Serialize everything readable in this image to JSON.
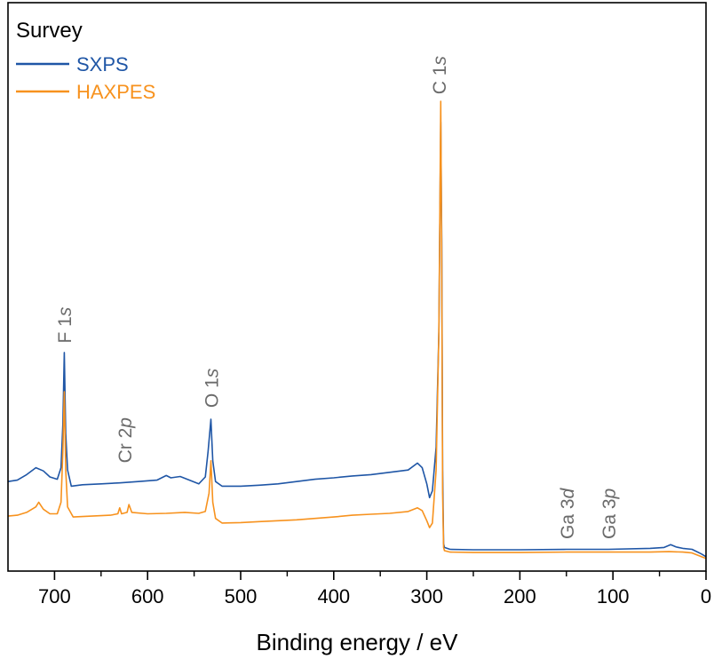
{
  "chart_data": {
    "type": "line",
    "title": "Survey",
    "xlabel": "Binding energy / eV",
    "ylabel": "",
    "xlim": [
      750,
      0
    ],
    "x_reversed": true,
    "y_axis_ticks": false,
    "grid": false,
    "legend_position": "top-left",
    "x_ticks": [
      700,
      600,
      500,
      400,
      300,
      200,
      100,
      0
    ],
    "series": [
      {
        "name": "SXPS",
        "color": "#1f56a6",
        "points": [
          [
            750,
            0.175
          ],
          [
            740,
            0.178
          ],
          [
            730,
            0.19
          ],
          [
            720,
            0.205
          ],
          [
            712,
            0.198
          ],
          [
            705,
            0.185
          ],
          [
            697,
            0.18
          ],
          [
            693,
            0.205
          ],
          [
            691,
            0.3
          ],
          [
            689.5,
            0.455
          ],
          [
            688,
            0.28
          ],
          [
            686,
            0.2
          ],
          [
            682,
            0.165
          ],
          [
            670,
            0.168
          ],
          [
            650,
            0.17
          ],
          [
            630,
            0.172
          ],
          [
            610,
            0.175
          ],
          [
            590,
            0.178
          ],
          [
            580,
            0.188
          ],
          [
            575,
            0.183
          ],
          [
            565,
            0.186
          ],
          [
            555,
            0.178
          ],
          [
            545,
            0.17
          ],
          [
            538,
            0.185
          ],
          [
            535,
            0.24
          ],
          [
            532,
            0.31
          ],
          [
            530,
            0.22
          ],
          [
            527,
            0.175
          ],
          [
            520,
            0.165
          ],
          [
            500,
            0.165
          ],
          [
            480,
            0.167
          ],
          [
            460,
            0.17
          ],
          [
            440,
            0.175
          ],
          [
            420,
            0.18
          ],
          [
            400,
            0.183
          ],
          [
            380,
            0.187
          ],
          [
            360,
            0.19
          ],
          [
            340,
            0.195
          ],
          [
            320,
            0.2
          ],
          [
            310,
            0.215
          ],
          [
            305,
            0.205
          ],
          [
            300,
            0.17
          ],
          [
            297,
            0.14
          ],
          [
            294,
            0.155
          ],
          [
            290,
            0.25
          ],
          [
            287,
            0.5
          ],
          [
            285,
            0.955
          ],
          [
            284,
            0.7
          ],
          [
            283,
            0.2
          ],
          [
            282,
            0.04
          ],
          [
            281,
            0.032
          ],
          [
            275,
            0.028
          ],
          [
            250,
            0.027
          ],
          [
            200,
            0.027
          ],
          [
            150,
            0.028
          ],
          [
            105,
            0.028
          ],
          [
            60,
            0.03
          ],
          [
            45,
            0.032
          ],
          [
            38,
            0.038
          ],
          [
            32,
            0.033
          ],
          [
            25,
            0.03
          ],
          [
            15,
            0.028
          ],
          [
            5,
            0.018
          ],
          [
            0,
            0.012
          ]
        ]
      },
      {
        "name": "HAXPES",
        "color": "#f7921e",
        "points": [
          [
            750,
            0.1
          ],
          [
            740,
            0.102
          ],
          [
            730,
            0.108
          ],
          [
            720,
            0.12
          ],
          [
            717,
            0.13
          ],
          [
            712,
            0.115
          ],
          [
            705,
            0.105
          ],
          [
            697,
            0.105
          ],
          [
            693,
            0.13
          ],
          [
            691,
            0.24
          ],
          [
            689.5,
            0.37
          ],
          [
            688,
            0.2
          ],
          [
            686,
            0.12
          ],
          [
            680,
            0.098
          ],
          [
            660,
            0.1
          ],
          [
            640,
            0.102
          ],
          [
            632,
            0.105
          ],
          [
            630,
            0.118
          ],
          [
            628,
            0.105
          ],
          [
            622,
            0.108
          ],
          [
            620,
            0.125
          ],
          [
            617,
            0.108
          ],
          [
            600,
            0.105
          ],
          [
            580,
            0.106
          ],
          [
            560,
            0.108
          ],
          [
            545,
            0.106
          ],
          [
            538,
            0.11
          ],
          [
            534,
            0.15
          ],
          [
            532,
            0.22
          ],
          [
            530,
            0.13
          ],
          [
            527,
            0.095
          ],
          [
            520,
            0.085
          ],
          [
            500,
            0.086
          ],
          [
            480,
            0.088
          ],
          [
            460,
            0.09
          ],
          [
            440,
            0.092
          ],
          [
            420,
            0.095
          ],
          [
            400,
            0.098
          ],
          [
            380,
            0.102
          ],
          [
            360,
            0.104
          ],
          [
            340,
            0.106
          ],
          [
            320,
            0.11
          ],
          [
            310,
            0.118
          ],
          [
            305,
            0.112
          ],
          [
            300,
            0.09
          ],
          [
            297,
            0.075
          ],
          [
            294,
            0.085
          ],
          [
            290,
            0.2
          ],
          [
            287,
            0.5
          ],
          [
            285,
            1.0
          ],
          [
            284,
            0.65
          ],
          [
            283,
            0.15
          ],
          [
            282,
            0.032
          ],
          [
            281,
            0.025
          ],
          [
            275,
            0.022
          ],
          [
            250,
            0.021
          ],
          [
            200,
            0.021
          ],
          [
            150,
            0.022
          ],
          [
            105,
            0.022
          ],
          [
            60,
            0.022
          ],
          [
            40,
            0.023
          ],
          [
            25,
            0.022
          ],
          [
            15,
            0.02
          ],
          [
            5,
            0.012
          ],
          [
            0,
            0.008
          ]
        ]
      }
    ],
    "peak_labels": [
      {
        "text": "F 1",
        "italic": "s",
        "x": 690,
        "y": 0.475
      },
      {
        "text": "Cr 2",
        "italic": "p",
        "x": 625,
        "y": 0.215
      },
      {
        "text": "O 1",
        "italic": "s",
        "x": 532,
        "y": 0.335
      },
      {
        "text": "C 1",
        "italic": "s",
        "x": 287,
        "y": 1.015
      },
      {
        "text": "Ga 3",
        "italic": "d",
        "x": 150,
        "y": 0.05
      },
      {
        "text": "Ga 3",
        "italic": "p",
        "x": 105,
        "y": 0.05
      }
    ]
  }
}
